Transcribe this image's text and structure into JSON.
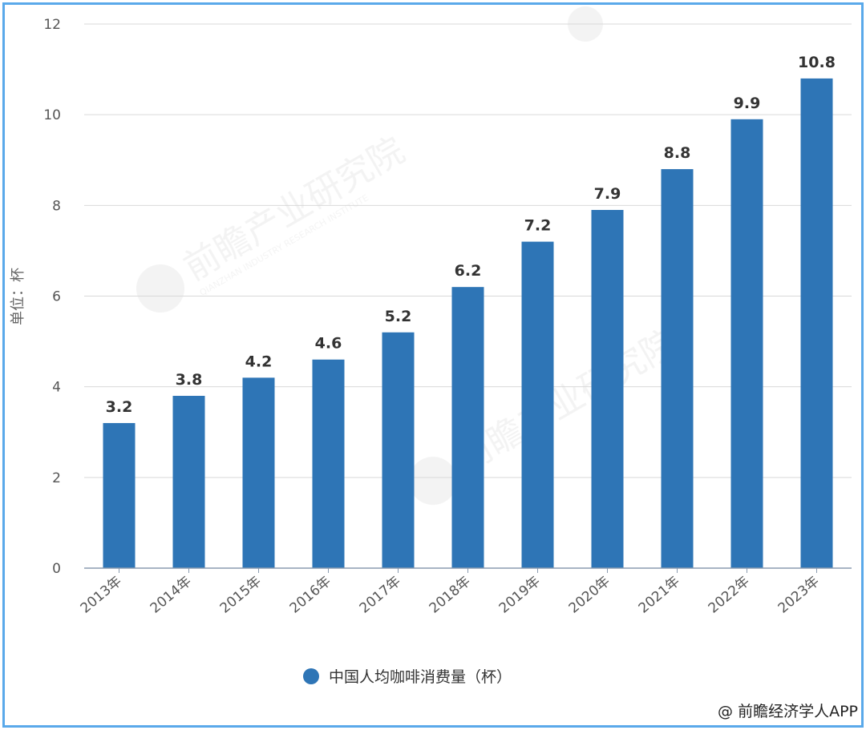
{
  "chart_data": {
    "type": "bar",
    "categories": [
      "2013年",
      "2014年",
      "2015年",
      "2016年",
      "2017年",
      "2018年",
      "2019年",
      "2020年",
      "2021年",
      "2022年",
      "2023年"
    ],
    "series": [
      {
        "name": "中国人均咖啡消费量（杯）",
        "values": [
          3.2,
          3.8,
          4.2,
          4.6,
          5.2,
          6.2,
          7.2,
          7.9,
          8.8,
          9.9,
          10.8
        ],
        "color": "#2e75b6"
      }
    ],
    "value_labels": [
      "3.2",
      "3.8",
      "4.2",
      "4.6",
      "5.2",
      "6.2",
      "7.2",
      "7.9",
      "8.8",
      "9.9",
      "10.8"
    ],
    "ylabel": "单位：杯",
    "ylim": [
      0,
      12
    ],
    "yticks": [
      0,
      2,
      4,
      6,
      8,
      10,
      12
    ],
    "grid": true,
    "legend_position": "bottom"
  },
  "source_credit": "@ 前瞻经济学人APP",
  "watermark": {
    "text": "前瞻产业研究院",
    "subtext": "QIANZHAN INDUSTRY RESEARCH INSTITUTE"
  },
  "colors": {
    "frame": "#5aa9ea",
    "bar": "#2e75b6",
    "grid": "#d9d9d9"
  }
}
